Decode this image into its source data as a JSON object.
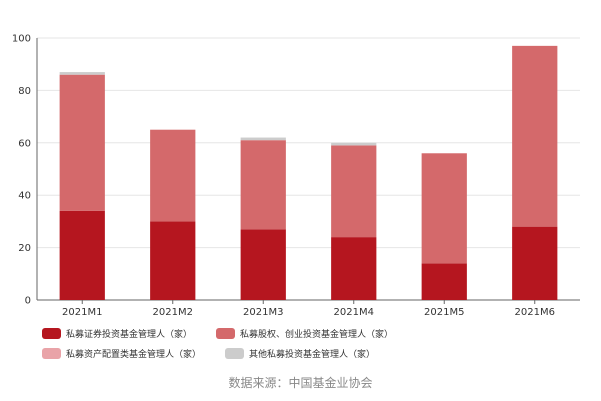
{
  "source_note": "数据来源：中国基金业协会",
  "chart_data": {
    "type": "bar",
    "stacked": true,
    "categories": [
      "2021M1",
      "2021M2",
      "2021M3",
      "2021M4",
      "2021M5",
      "2021M6"
    ],
    "series": [
      {
        "name": "私募证券投资基金管理人（家）",
        "color": "#b5161f",
        "values": [
          34,
          30,
          27,
          24,
          14,
          28
        ]
      },
      {
        "name": "私募股权、创业投资基金管理人（家）",
        "color": "#d4696b",
        "values": [
          52,
          35,
          34,
          35,
          42,
          69
        ]
      },
      {
        "name": "私募资产配置类基金管理人（家）",
        "color": "#e9a3a8",
        "values": [
          0,
          0,
          0,
          0,
          0,
          0
        ]
      },
      {
        "name": "其他私募投资基金管理人（家）",
        "color": "#cccccc",
        "values": [
          1,
          0,
          1,
          1,
          0,
          0
        ]
      }
    ],
    "ylim": [
      0,
      100
    ],
    "yticks": [
      0,
      20,
      40,
      60,
      80,
      100
    ],
    "grid": true,
    "legend_position": "bottom",
    "title": "",
    "xlabel": "",
    "ylabel": ""
  }
}
